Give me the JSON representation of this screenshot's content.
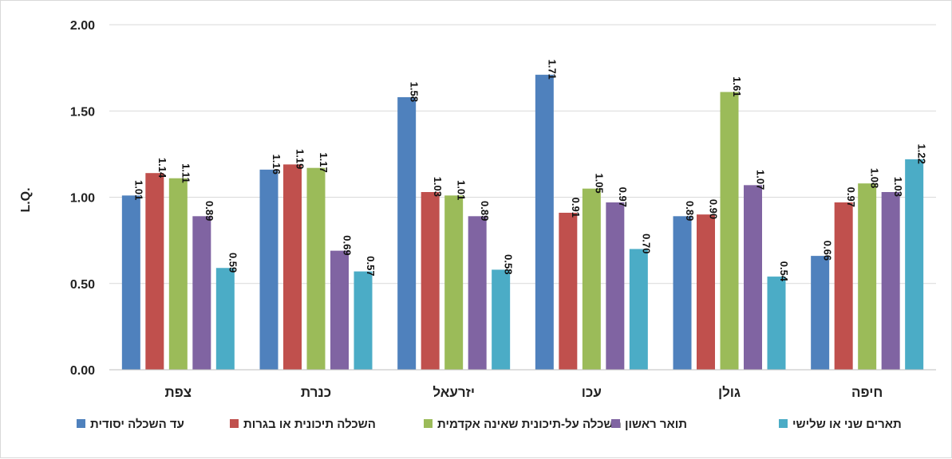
{
  "chart_data": {
    "type": "bar",
    "title": "",
    "xlabel": "",
    "ylabel": "L.Q.",
    "ylim": [
      0,
      2
    ],
    "yticks": [
      "0.00",
      "0.50",
      "1.00",
      "1.50",
      "2.00"
    ],
    "grid": true,
    "legend_position": "bottom",
    "categories": [
      "צפת",
      "כנרת",
      "יזרעאל",
      "עכו",
      "גולן",
      "חיפה"
    ],
    "series": [
      {
        "name": "עד השכלה יסודית",
        "color": "#4f81bd",
        "values": [
          1.01,
          1.16,
          1.58,
          1.71,
          0.89,
          0.66
        ]
      },
      {
        "name": "השכלה תיכונית או בגרות",
        "color": "#c0504d",
        "values": [
          1.14,
          1.19,
          1.03,
          0.91,
          0.9,
          0.97
        ]
      },
      {
        "name": "השכלה על-תיכונית שאינה אקדמית",
        "color": "#9bbb59",
        "values": [
          1.11,
          1.17,
          1.01,
          1.05,
          1.61,
          1.08
        ]
      },
      {
        "name": "תואר ראשון",
        "color": "#8064a2",
        "values": [
          0.89,
          0.69,
          0.89,
          0.97,
          1.07,
          1.03
        ]
      },
      {
        "name": "תארים שני או שלישי",
        "color": "#4bacc6",
        "values": [
          0.59,
          0.57,
          0.58,
          0.7,
          0.54,
          1.22
        ]
      }
    ]
  }
}
